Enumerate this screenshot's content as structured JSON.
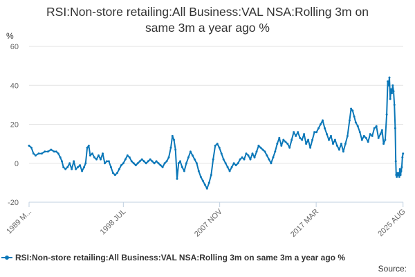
{
  "chart_data": {
    "type": "line",
    "title_lines": [
      "RSI:Non-store retailing:All Business:VAL NSA:Rolling 3m on",
      "same 3m a year ago %"
    ],
    "ylabel": "%",
    "xlabel": "",
    "ylim": [
      -20,
      60
    ],
    "yticks": [
      -20,
      0,
      20,
      40,
      60
    ],
    "xlim": [
      1989.37,
      2025.6
    ],
    "xticks": [
      {
        "label": "1989 M...",
        "x": 1989.37
      },
      {
        "label": "1998 JUL",
        "x": 1998.5
      },
      {
        "label": "2007 NOV",
        "x": 2007.83
      },
      {
        "label": "2017 MAR",
        "x": 2017.17
      },
      {
        "label": "2025 AUG",
        "x": 2025.58
      }
    ],
    "grid": true,
    "legend_position": "bottom",
    "series": [
      {
        "name": "RSI:Non-store retailing:All Business:VAL NSA:Rolling 3m on same 3m a year ago %",
        "color": "#0a77b8",
        "points": [
          [
            1989.37,
            9
          ],
          [
            1989.6,
            8
          ],
          [
            1989.8,
            5
          ],
          [
            1990.0,
            4
          ],
          [
            1990.3,
            5
          ],
          [
            1990.6,
            5
          ],
          [
            1990.9,
            6
          ],
          [
            1991.2,
            6
          ],
          [
            1991.5,
            7
          ],
          [
            1991.8,
            6
          ],
          [
            1992.0,
            6
          ],
          [
            1992.2,
            5
          ],
          [
            1992.4,
            3
          ],
          [
            1992.55,
            1
          ],
          [
            1992.7,
            -2
          ],
          [
            1992.9,
            -3
          ],
          [
            1993.1,
            -2
          ],
          [
            1993.3,
            0
          ],
          [
            1993.5,
            -3
          ],
          [
            1993.7,
            1
          ],
          [
            1993.9,
            -3
          ],
          [
            1994.1,
            -2
          ],
          [
            1994.3,
            -1
          ],
          [
            1994.5,
            -4
          ],
          [
            1994.7,
            -2
          ],
          [
            1994.85,
            0
          ],
          [
            1995.0,
            8
          ],
          [
            1995.15,
            9
          ],
          [
            1995.3,
            4
          ],
          [
            1995.5,
            5
          ],
          [
            1995.7,
            3
          ],
          [
            1995.9,
            2
          ],
          [
            1996.1,
            4
          ],
          [
            1996.3,
            2
          ],
          [
            1996.5,
            5
          ],
          [
            1996.7,
            0
          ],
          [
            1996.9,
            1
          ],
          [
            1997.1,
            1
          ],
          [
            1997.3,
            -2
          ],
          [
            1997.5,
            -5
          ],
          [
            1997.7,
            -6
          ],
          [
            1997.9,
            -5
          ],
          [
            1998.1,
            -3
          ],
          [
            1998.3,
            -1
          ],
          [
            1998.5,
            0
          ],
          [
            1998.7,
            2
          ],
          [
            1998.9,
            4
          ],
          [
            1999.1,
            3
          ],
          [
            1999.3,
            1
          ],
          [
            1999.5,
            0
          ],
          [
            1999.7,
            -1
          ],
          [
            1999.9,
            0
          ],
          [
            2000.1,
            1
          ],
          [
            2000.3,
            2
          ],
          [
            2000.5,
            1
          ],
          [
            2000.7,
            0
          ],
          [
            2000.9,
            1
          ],
          [
            2001.1,
            2
          ],
          [
            2001.3,
            1
          ],
          [
            2001.5,
            0
          ],
          [
            2001.7,
            1
          ],
          [
            2001.9,
            0
          ],
          [
            2002.1,
            -1
          ],
          [
            2002.3,
            -2
          ],
          [
            2002.5,
            0
          ],
          [
            2002.7,
            1
          ],
          [
            2002.9,
            3
          ],
          [
            2003.1,
            8
          ],
          [
            2003.25,
            14
          ],
          [
            2003.4,
            12
          ],
          [
            2003.55,
            7
          ],
          [
            2003.7,
            -8
          ],
          [
            2003.85,
            0
          ],
          [
            2004.0,
            1
          ],
          [
            2004.2,
            -2
          ],
          [
            2004.4,
            -4
          ],
          [
            2004.6,
            0
          ],
          [
            2004.8,
            3
          ],
          [
            2005.0,
            6
          ],
          [
            2005.2,
            4
          ],
          [
            2005.4,
            2
          ],
          [
            2005.6,
            0
          ],
          [
            2005.8,
            -4
          ],
          [
            2006.0,
            -7
          ],
          [
            2006.2,
            -9
          ],
          [
            2006.4,
            -11
          ],
          [
            2006.6,
            -13
          ],
          [
            2006.8,
            -10
          ],
          [
            2007.0,
            -6
          ],
          [
            2007.2,
            2
          ],
          [
            2007.4,
            9
          ],
          [
            2007.6,
            10
          ],
          [
            2007.8,
            8
          ],
          [
            2008.0,
            5
          ],
          [
            2008.2,
            2
          ],
          [
            2008.4,
            0
          ],
          [
            2008.6,
            -2
          ],
          [
            2008.8,
            -4
          ],
          [
            2009.0,
            -2
          ],
          [
            2009.2,
            0
          ],
          [
            2009.4,
            -1
          ],
          [
            2009.6,
            0
          ],
          [
            2009.8,
            2
          ],
          [
            2010.0,
            3
          ],
          [
            2010.2,
            2
          ],
          [
            2010.4,
            5
          ],
          [
            2010.6,
            4
          ],
          [
            2010.8,
            2
          ],
          [
            2011.0,
            5
          ],
          [
            2011.2,
            3
          ],
          [
            2011.4,
            6
          ],
          [
            2011.6,
            9
          ],
          [
            2011.8,
            8
          ],
          [
            2012.0,
            7
          ],
          [
            2012.2,
            6
          ],
          [
            2012.4,
            4
          ],
          [
            2012.6,
            2
          ],
          [
            2012.8,
            0
          ],
          [
            2013.0,
            3
          ],
          [
            2013.2,
            6
          ],
          [
            2013.4,
            10
          ],
          [
            2013.6,
            13
          ],
          [
            2013.8,
            9
          ],
          [
            2014.0,
            12
          ],
          [
            2014.2,
            11
          ],
          [
            2014.4,
            10
          ],
          [
            2014.6,
            8
          ],
          [
            2014.8,
            12
          ],
          [
            2015.0,
            16
          ],
          [
            2015.2,
            14
          ],
          [
            2015.4,
            16
          ],
          [
            2015.6,
            13
          ],
          [
            2015.8,
            12
          ],
          [
            2016.0,
            15
          ],
          [
            2016.2,
            10
          ],
          [
            2016.4,
            12
          ],
          [
            2016.6,
            8
          ],
          [
            2016.8,
            12
          ],
          [
            2017.0,
            16
          ],
          [
            2017.2,
            16
          ],
          [
            2017.4,
            18
          ],
          [
            2017.6,
            20
          ],
          [
            2017.8,
            22
          ],
          [
            2018.0,
            18
          ],
          [
            2018.2,
            15
          ],
          [
            2018.4,
            12
          ],
          [
            2018.6,
            14
          ],
          [
            2018.8,
            10
          ],
          [
            2019.0,
            12
          ],
          [
            2019.2,
            9
          ],
          [
            2019.4,
            7
          ],
          [
            2019.6,
            10
          ],
          [
            2019.8,
            6
          ],
          [
            2020.0,
            10
          ],
          [
            2020.2,
            14
          ],
          [
            2020.4,
            22
          ],
          [
            2020.55,
            28
          ],
          [
            2020.7,
            27
          ],
          [
            2020.85,
            24
          ],
          [
            2021.0,
            21
          ],
          [
            2021.2,
            19
          ],
          [
            2021.4,
            16
          ],
          [
            2021.6,
            12
          ],
          [
            2021.8,
            14
          ],
          [
            2022.0,
            13
          ],
          [
            2022.2,
            11
          ],
          [
            2022.4,
            15
          ],
          [
            2022.6,
            14
          ],
          [
            2022.8,
            18
          ],
          [
            2023.0,
            19
          ],
          [
            2023.2,
            13
          ],
          [
            2023.4,
            15
          ],
          [
            2023.55,
            17
          ],
          [
            2023.7,
            10
          ],
          [
            2023.85,
            12
          ],
          [
            2024.0,
            25
          ],
          [
            2024.1,
            42
          ],
          [
            2024.18,
            40
          ],
          [
            2024.26,
            44
          ],
          [
            2024.34,
            33
          ],
          [
            2024.42,
            38
          ],
          [
            2024.5,
            36
          ],
          [
            2024.58,
            40
          ],
          [
            2024.66,
            37
          ],
          [
            2024.74,
            30
          ],
          [
            2024.82,
            18
          ],
          [
            2024.88,
            1
          ],
          [
            2024.92,
            -6
          ],
          [
            2024.98,
            -7
          ],
          [
            2025.04,
            -5
          ],
          [
            2025.1,
            -6
          ],
          [
            2025.16,
            -5
          ],
          [
            2025.22,
            -7
          ],
          [
            2025.28,
            -3
          ],
          [
            2025.34,
            -6
          ],
          [
            2025.4,
            -4
          ],
          [
            2025.46,
            -2
          ],
          [
            2025.52,
            3
          ],
          [
            2025.58,
            5
          ]
        ]
      }
    ]
  },
  "source_label": "Source:"
}
